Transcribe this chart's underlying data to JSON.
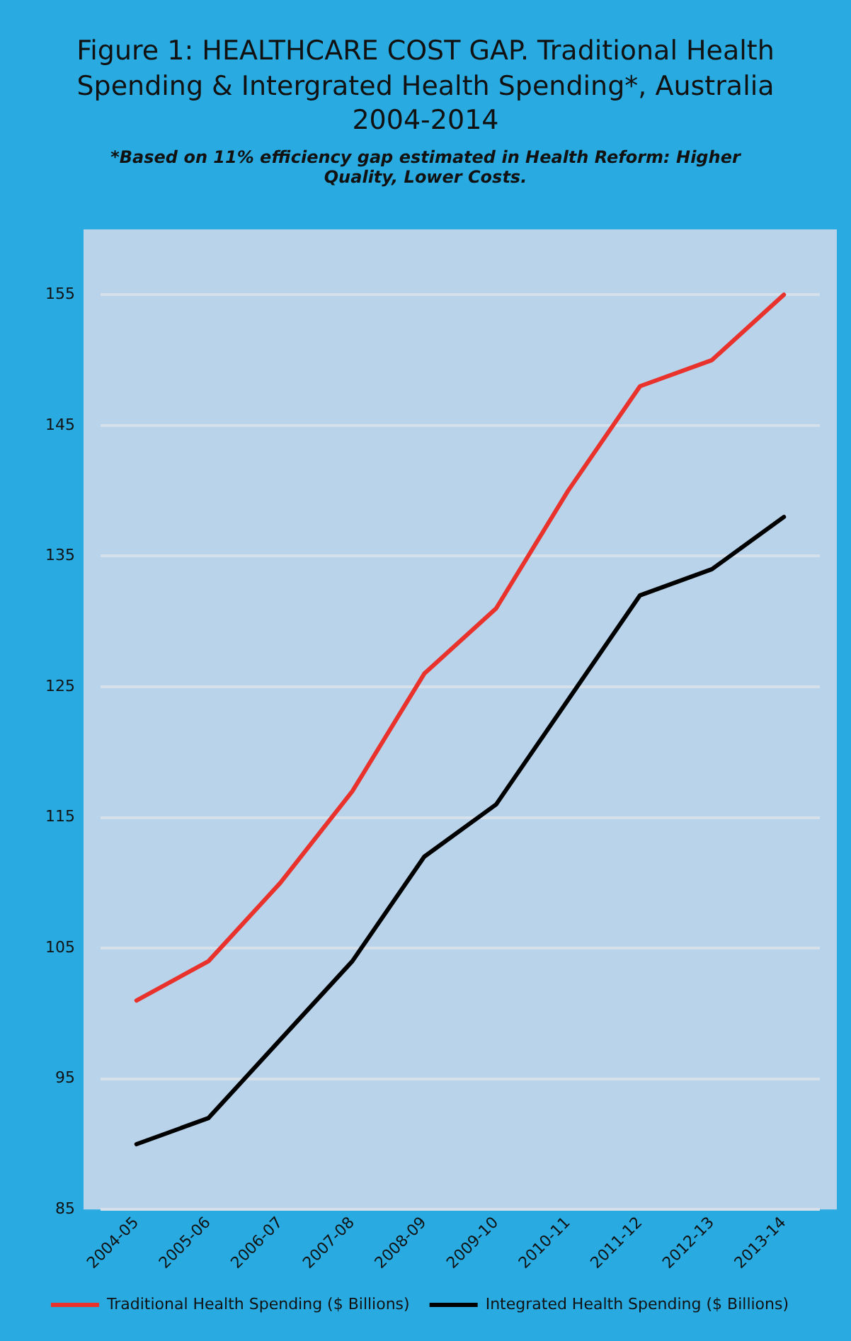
{
  "chart_data": {
    "type": "line",
    "title": "Figure 1: HEALTHCARE COST GAP. Traditional Health Spending & Intergrated Health Spending*, Australia 2004-2014",
    "subtitle": "*Based on 11% efficiency gap estimated in Health Reform: Higher Quality, Lower Costs.",
    "categories": [
      "2004-05",
      "2005-06",
      "2006-07",
      "2007-08",
      "2008-09",
      "2009-10",
      "2010-11",
      "2011-12",
      "2012-13",
      "2013-14"
    ],
    "series": [
      {
        "name": "Traditional Health Spending ($ Billions)",
        "color": "#e8322b",
        "values": [
          101,
          104,
          110,
          117,
          126,
          131,
          140,
          148,
          150,
          155
        ]
      },
      {
        "name": "Integrated Health Spending ($ Billions)",
        "color": "#000000",
        "values": [
          90,
          92,
          98,
          104,
          112,
          116,
          124,
          132,
          134,
          138
        ]
      }
    ],
    "ylim": [
      85,
      160
    ],
    "yticks": [
      85,
      95,
      105,
      115,
      125,
      135,
      145,
      155
    ],
    "grid": "y",
    "legend": "bottom",
    "marker": "none",
    "line_style": "solid"
  }
}
